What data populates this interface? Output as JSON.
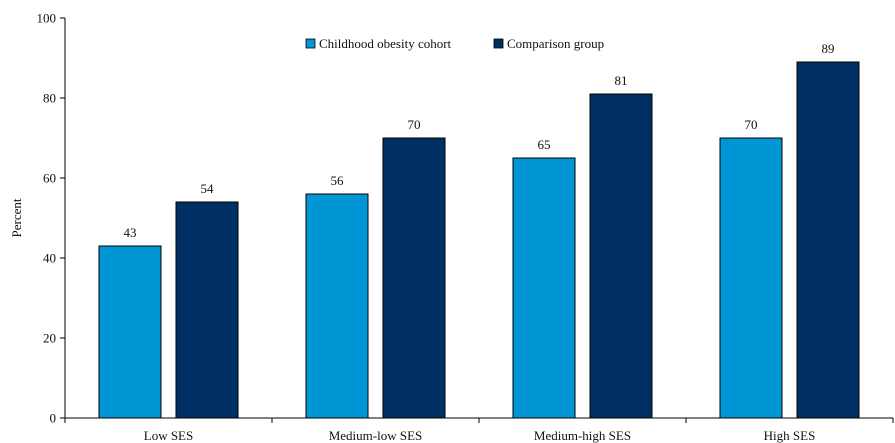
{
  "chart_data": {
    "type": "bar",
    "categories": [
      "Low SES",
      "Medium-low SES",
      "Medium-high SES",
      "High SES"
    ],
    "series": [
      {
        "name": "Childhood obesity cohort",
        "values": [
          43,
          56,
          65,
          70
        ],
        "labels": [
          "43",
          "56",
          "65",
          "70"
        ],
        "color": "#0096d6"
      },
      {
        "name": "Comparison group",
        "values": [
          54,
          70,
          81,
          89
        ],
        "labels": [
          "54",
          "70",
          "81",
          "89"
        ],
        "color": "#003063"
      }
    ],
    "ylabel": "Percent",
    "xlabel": "",
    "ylim": [
      0,
      100
    ],
    "yticks": [
      0,
      20,
      40,
      60,
      80,
      100
    ],
    "ytick_labels": [
      "0",
      "20",
      "40",
      "60",
      "80",
      "100"
    ],
    "grid": false,
    "legend_position": "top-center"
  }
}
